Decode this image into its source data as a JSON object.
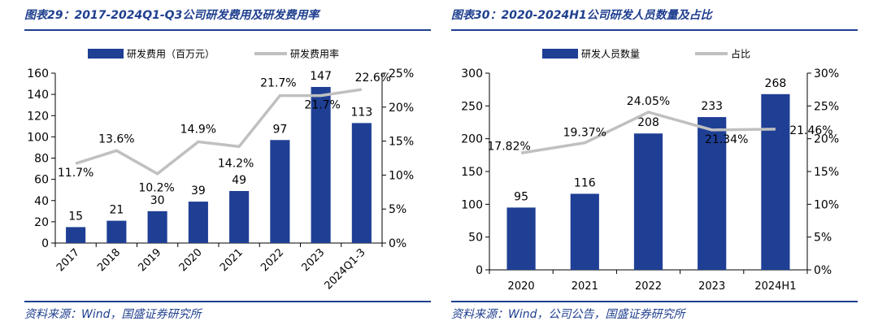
{
  "colors": {
    "bar": "#1f3f95",
    "line": "#c0c0c0",
    "accent": "#1f3f8f"
  },
  "left": {
    "title": "图表29：2017-2024Q1-Q3公司研发费用及研发费用率",
    "source": "资料来源：Wind，国盛证券研究所",
    "chart_data": {
      "type": "bar",
      "categories": [
        "2017",
        "2018",
        "2019",
        "2020",
        "2021",
        "2022",
        "2023",
        "2024Q1-3"
      ],
      "series": [
        {
          "name": "研发费用（百万元）",
          "type": "bar",
          "axis": "left",
          "values": [
            15,
            21,
            30,
            39,
            49,
            97,
            147,
            113
          ],
          "labels": [
            "15",
            "21",
            "30",
            "39",
            "49",
            "97",
            "147",
            "113"
          ]
        },
        {
          "name": "研发费用率",
          "type": "line",
          "axis": "right",
          "values": [
            11.7,
            13.6,
            10.2,
            14.9,
            14.2,
            21.7,
            21.7,
            22.6
          ],
          "labels": [
            "11.7%",
            "13.6%",
            "10.2%",
            "14.9%",
            "14.2%",
            "21.7%",
            "21.7%",
            "22.6%"
          ]
        }
      ],
      "ylim": [
        0,
        160
      ],
      "yticks": [
        "0",
        "20",
        "40",
        "60",
        "80",
        "100",
        "120",
        "140",
        "160"
      ],
      "y2lim": [
        0,
        25
      ],
      "y2ticks": [
        "0%",
        "5%",
        "10%",
        "15%",
        "20%",
        "25%"
      ],
      "legend": "top"
    }
  },
  "right": {
    "title": "图表30：2020-2024H1公司研发人员数量及占比",
    "source": "资料来源：Wind，公司公告，国盛证券研究所",
    "chart_data": {
      "type": "bar",
      "categories": [
        "2020",
        "2021",
        "2022",
        "2023",
        "2024H1"
      ],
      "series": [
        {
          "name": "研发人员数量",
          "type": "bar",
          "axis": "left",
          "values": [
            95,
            116,
            208,
            233,
            268
          ],
          "labels": [
            "95",
            "116",
            "208",
            "233",
            "268"
          ]
        },
        {
          "name": "占比",
          "type": "line",
          "axis": "right",
          "values": [
            17.82,
            19.37,
            24.05,
            21.34,
            21.46
          ],
          "labels": [
            "17.82%",
            "19.37%",
            "24.05%",
            "21.34%",
            "21.46%"
          ]
        }
      ],
      "ylim": [
        0,
        300
      ],
      "yticks": [
        "0",
        "50",
        "100",
        "150",
        "200",
        "250",
        "300"
      ],
      "y2lim": [
        0,
        30
      ],
      "y2ticks": [
        "0%",
        "5%",
        "10%",
        "15%",
        "20%",
        "25%",
        "30%"
      ],
      "legend": "top"
    }
  }
}
